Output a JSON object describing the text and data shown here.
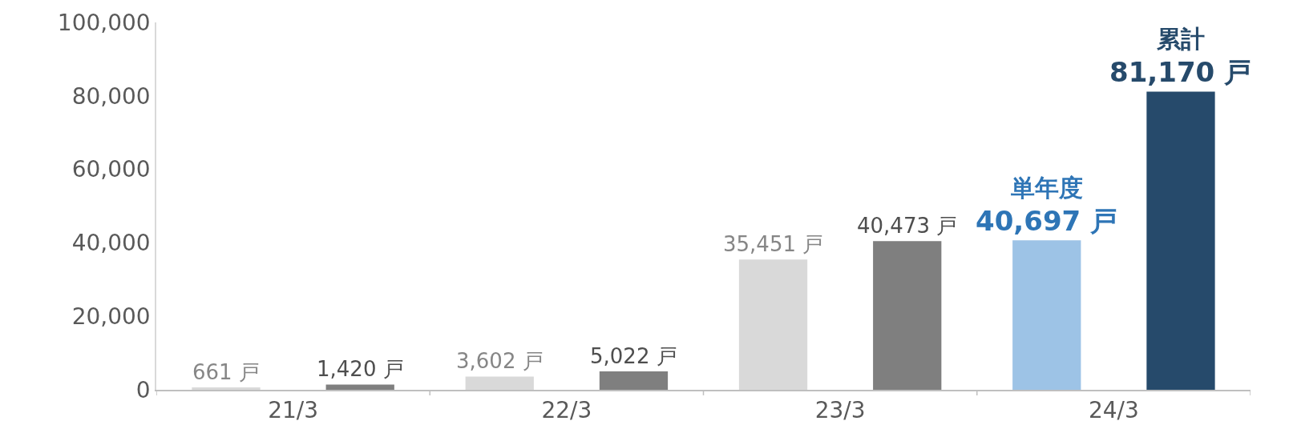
{
  "chart_data": {
    "type": "bar",
    "categories": [
      "21/3",
      "22/3",
      "23/3",
      "24/3"
    ],
    "series": [
      {
        "name": "単年度",
        "colors": [
          "#d9d9d9",
          "#d9d9d9",
          "#d9d9d9",
          "#9dc3e6"
        ],
        "values": [
          661,
          3602,
          35451,
          40697
        ],
        "value_labels": [
          "661 戸",
          "3,602 戸",
          "35,451 戸",
          "40,697 戸"
        ]
      },
      {
        "name": "累計",
        "colors": [
          "#7f7f7f",
          "#7f7f7f",
          "#7f7f7f",
          "#264a6b"
        ],
        "values": [
          1420,
          5022,
          40473,
          81170
        ],
        "value_labels": [
          "1,420 戸",
          "5,022 戸",
          "40,473 戸",
          "81,170 戸"
        ]
      }
    ],
    "ylim": [
      0,
      100000
    ],
    "yticks": [
      {
        "value": 0,
        "label": "0"
      },
      {
        "value": 20000,
        "label": "20,000"
      },
      {
        "value": 40000,
        "label": "40,000"
      },
      {
        "value": 60000,
        "label": "60,000"
      },
      {
        "value": 80000,
        "label": "80,000"
      },
      {
        "value": 100000,
        "label": "100,000"
      }
    ],
    "tick_labels": "xy"
  }
}
